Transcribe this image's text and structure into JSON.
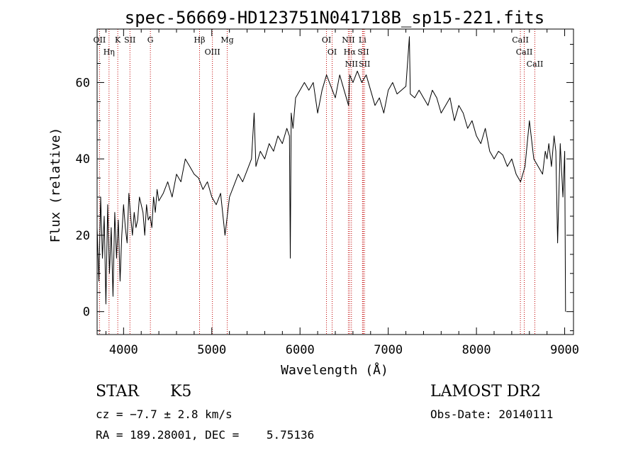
{
  "chart_data": {
    "type": "line",
    "title": "spec-56669-HD123751N041718B_sp15-221.fits",
    "xlabel": "Wavelength (Å)",
    "ylabel": "Flux (relative)",
    "xlim": [
      3700,
      9100
    ],
    "ylim": [
      -6,
      74
    ],
    "x_ticks": [
      {
        "value": 4000,
        "label": "4000"
      },
      {
        "value": 5000,
        "label": "5000"
      },
      {
        "value": 6000,
        "label": "6000"
      },
      {
        "value": 7000,
        "label": "7000"
      },
      {
        "value": 8000,
        "label": "8000"
      },
      {
        "value": 9000,
        "label": "9000"
      }
    ],
    "y_ticks": [
      {
        "value": 0,
        "label": "0"
      },
      {
        "value": 20,
        "label": "20"
      },
      {
        "value": 40,
        "label": "40"
      },
      {
        "value": 60,
        "label": "60"
      }
    ],
    "series": [
      {
        "color": "#000000",
        "x": [
          3700,
          3720,
          3740,
          3760,
          3780,
          3800,
          3820,
          3840,
          3860,
          3880,
          3900,
          3920,
          3940,
          3960,
          3980,
          4000,
          4020,
          4040,
          4060,
          4080,
          4100,
          4120,
          4140,
          4160,
          4180,
          4200,
          4220,
          4240,
          4260,
          4280,
          4300,
          4320,
          4340,
          4360,
          4380,
          4400,
          4450,
          4500,
          4550,
          4600,
          4650,
          4700,
          4750,
          4800,
          4850,
          4900,
          4950,
          5000,
          5050,
          5100,
          5150,
          5180,
          5200,
          5250,
          5300,
          5350,
          5400,
          5450,
          5480,
          5500,
          5550,
          5600,
          5650,
          5700,
          5750,
          5800,
          5850,
          5880,
          5890,
          5900,
          5920,
          5950,
          6000,
          6050,
          6100,
          6150,
          6200,
          6250,
          6300,
          6350,
          6400,
          6450,
          6500,
          6550,
          6563,
          6600,
          6650,
          6700,
          6750,
          6800,
          6850,
          6900,
          6950,
          7000,
          7050,
          7100,
          7150,
          7200,
          7240,
          7250,
          7300,
          7350,
          7400,
          7450,
          7500,
          7550,
          7600,
          7650,
          7700,
          7750,
          7800,
          7850,
          7900,
          7950,
          8000,
          8050,
          8100,
          8150,
          8200,
          8250,
          8300,
          8350,
          8400,
          8450,
          8500,
          8550,
          8600,
          8650,
          8700,
          8750,
          8780,
          8800,
          8820,
          8850,
          8880,
          8900,
          8920,
          8950,
          8980,
          9000,
          9010
        ],
        "y": [
          22,
          8,
          30,
          14,
          25,
          2,
          28,
          10,
          22,
          4,
          26,
          14,
          24,
          8,
          20,
          28,
          22,
          18,
          31,
          25,
          20,
          26,
          22,
          24,
          30,
          28,
          26,
          20,
          28,
          24,
          25,
          22,
          30,
          26,
          32,
          29,
          31,
          34,
          30,
          36,
          34,
          40,
          38,
          36,
          35,
          32,
          34,
          30,
          28,
          31,
          20,
          26,
          30,
          33,
          36,
          34,
          37,
          40,
          52,
          38,
          42,
          40,
          44,
          42,
          46,
          44,
          48,
          46,
          14,
          52,
          48,
          56,
          58,
          60,
          58,
          60,
          52,
          58,
          62,
          59,
          56,
          62,
          58,
          54,
          62,
          60,
          63,
          60,
          62,
          58,
          54,
          56,
          52,
          58,
          60,
          57,
          58,
          59,
          72,
          57,
          56,
          58,
          56,
          54,
          58,
          56,
          52,
          54,
          56,
          50,
          54,
          52,
          48,
          50,
          46,
          44,
          48,
          42,
          40,
          42,
          41,
          38,
          40,
          36,
          34,
          38,
          50,
          40,
          38,
          36,
          42,
          40,
          44,
          38,
          46,
          42,
          18,
          44,
          30,
          42,
          0
        ]
      }
    ],
    "lines": [
      {
        "x": 3727,
        "label": "OII"
      },
      {
        "x": 3835,
        "label": "Hη"
      },
      {
        "x": 3934,
        "label": "K"
      },
      {
        "x": 4072,
        "label": "SII"
      },
      {
        "x": 4304,
        "label": "G"
      },
      {
        "x": 4861,
        "label": "Hβ"
      },
      {
        "x": 5007,
        "label": "OIII"
      },
      {
        "x": 5175,
        "label": "Mg"
      },
      {
        "x": 6300,
        "label": "OI"
      },
      {
        "x": 6364,
        "label": "OI"
      },
      {
        "x": 6548,
        "label": "NII"
      },
      {
        "x": 6563,
        "label": "Hα"
      },
      {
        "x": 6583,
        "label": "NII"
      },
      {
        "x": 6708,
        "label": "Li"
      },
      {
        "x": 6717,
        "label": "SII"
      },
      {
        "x": 6731,
        "label": "SII"
      },
      {
        "x": 8498,
        "label": "CaII"
      },
      {
        "x": 8542,
        "label": "CaII"
      },
      {
        "x": 8662,
        "label": "CaII"
      }
    ]
  },
  "info": {
    "object_class": "STAR",
    "subclass": "K5",
    "survey": "LAMOST DR2",
    "velocity": "cz = −7.7 ± 2.8 km/s",
    "obs_date": "Obs-Date: 20140111",
    "coords": "RA = 189.28001, DEC =    5.75136"
  }
}
